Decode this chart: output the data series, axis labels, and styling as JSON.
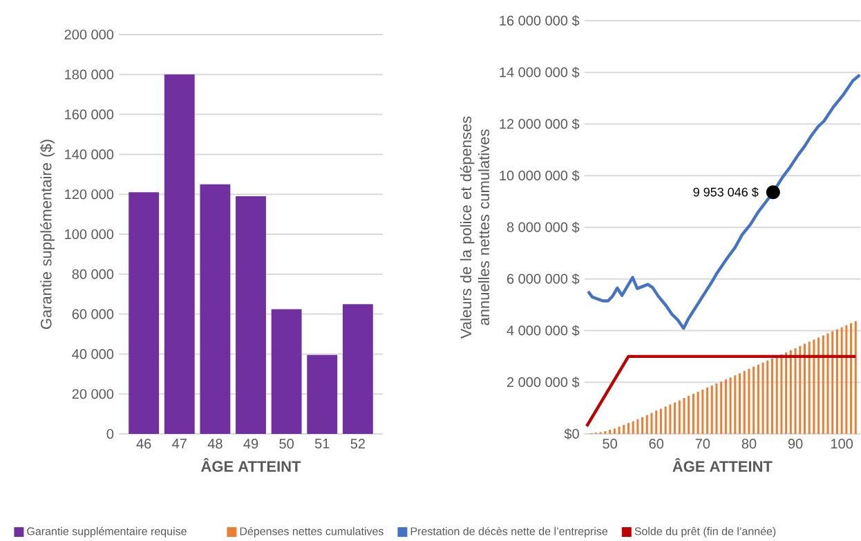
{
  "chart_data": [
    {
      "type": "bar",
      "xlabel": "ÂGE ATTEINT",
      "ylabel": "Garantie supplémentaire ($)",
      "categories": [
        "46",
        "47",
        "48",
        "49",
        "50",
        "51",
        "52"
      ],
      "series": [
        {
          "name": "Garantie supplémentaire requise",
          "color": "#7030a0",
          "values": [
            121000,
            180000,
            125000,
            119000,
            62500,
            39500,
            65000
          ]
        }
      ],
      "ylim": [
        0,
        200000
      ],
      "yticks": [
        0,
        {
          "value": 20000,
          "label": "20 000"
        },
        {
          "value": 40000,
          "label": "40 000"
        },
        {
          "value": 60000,
          "label": "60 000"
        },
        {
          "value": 80000,
          "label": "80 000"
        },
        {
          "value": 100000,
          "label": "100 000"
        },
        {
          "value": 120000,
          "label": "120 000"
        },
        {
          "value": 140000,
          "label": "140 000"
        },
        {
          "value": 160000,
          "label": "160 000"
        },
        {
          "value": 180000,
          "label": "180 000"
        },
        {
          "value": 200000,
          "label": "200 000"
        }
      ],
      "grid": "y",
      "legend": "bottom"
    },
    {
      "type": "bar",
      "xlabel": "ÂGE ATTEINT",
      "ylabel": "Valeurs de la police et dépenses annuelles nettes cumulatives",
      "x": [
        45,
        46,
        47,
        48,
        49,
        50,
        51,
        52,
        53,
        54,
        55,
        56,
        57,
        58,
        59,
        60,
        61,
        62,
        63,
        64,
        65,
        66,
        67,
        68,
        69,
        70,
        71,
        72,
        73,
        74,
        75,
        76,
        77,
        78,
        79,
        80,
        81,
        82,
        83,
        84,
        85,
        86,
        87,
        88,
        89,
        90,
        91,
        92,
        93,
        94,
        95,
        96,
        97,
        98,
        99,
        100,
        101,
        102,
        103
      ],
      "series": [
        {
          "name": "Dépenses nettes cumulatives",
          "type": "bar",
          "color": "#ed7d31",
          "values": [
            0,
            30000,
            50000,
            70000,
            110000,
            160000,
            210000,
            280000,
            350000,
            420000,
            490000,
            570000,
            650000,
            730000,
            810000,
            900000,
            980000,
            1060000,
            1140000,
            1220000,
            1300000,
            1390000,
            1470000,
            1550000,
            1630000,
            1710000,
            1790000,
            1870000,
            1950000,
            2030000,
            2110000,
            2190000,
            2270000,
            2350000,
            2440000,
            2520000,
            2600000,
            2680000,
            2760000,
            2840000,
            2920000,
            3000000,
            3080000,
            3160000,
            3240000,
            3320000,
            3400000,
            3490000,
            3570000,
            3650000,
            3730000,
            3810000,
            3890000,
            3970000,
            4050000,
            4130000,
            4210000,
            4290000,
            4370000
          ]
        },
        {
          "name": "Prestation de décès nette de l’entreprise",
          "type": "line",
          "color": "#4472c4",
          "x": [
            45.3,
            46.2,
            48.5,
            49.6,
            50.6,
            51.6,
            52.6,
            54.9,
            55.9,
            58.2,
            59.2,
            60.4,
            62.1,
            63.4,
            64.6,
            65.9,
            66.9,
            72.1,
            73.1,
            75.3,
            77.0,
            78.5,
            80.3,
            82.0,
            83.5,
            85.2,
            87.2,
            88.7,
            90.5,
            92.0,
            93.4,
            94.9,
            96.2,
            98.2,
            100.4,
            102.4,
            103.9
          ],
          "values": [
            5520000,
            5300000,
            5150000,
            5150000,
            5340000,
            5650000,
            5360000,
            6060000,
            5630000,
            5790000,
            5670000,
            5340000,
            4970000,
            4630000,
            4420000,
            4090000,
            4450000,
            5920000,
            6230000,
            6810000,
            7220000,
            7710000,
            8110000,
            8600000,
            8950000,
            9360000,
            9930000,
            10290000,
            10780000,
            11140000,
            11540000,
            11900000,
            12120000,
            12660000,
            13150000,
            13680000,
            13900000
          ]
        },
        {
          "name": "Solde du prêt (fin de l’année)",
          "type": "line",
          "color": "#c00000",
          "x": [
            45,
            54,
            103
          ],
          "values": [
            300000,
            3000000,
            3000000
          ]
        }
      ],
      "xlim": [
        44.5,
        104
      ],
      "xticks": [
        50,
        60,
        70,
        80,
        90,
        100
      ],
      "ylim": [
        0,
        16000000
      ],
      "yticks": [
        {
          "value": 0,
          "label": "$0"
        },
        {
          "value": 2000000,
          "label": "2 000 000 $"
        },
        {
          "value": 4000000,
          "label": "4 000 000 $"
        },
        {
          "value": 6000000,
          "label": "6 000 000 $"
        },
        {
          "value": 8000000,
          "label": "8 000 000 $"
        },
        {
          "value": 10000000,
          "label": "10 000 000 $"
        },
        {
          "value": 12000000,
          "label": "12 000 000 $"
        },
        {
          "value": 14000000,
          "label": "14 000 000 $"
        },
        {
          "value": 16000000,
          "label": "16 000 000 $"
        }
      ],
      "annotations": [
        {
          "text": "9 953 046 $",
          "x": 85.2,
          "y": 9360000
        }
      ],
      "grid": "y",
      "legend": "bottom"
    }
  ]
}
